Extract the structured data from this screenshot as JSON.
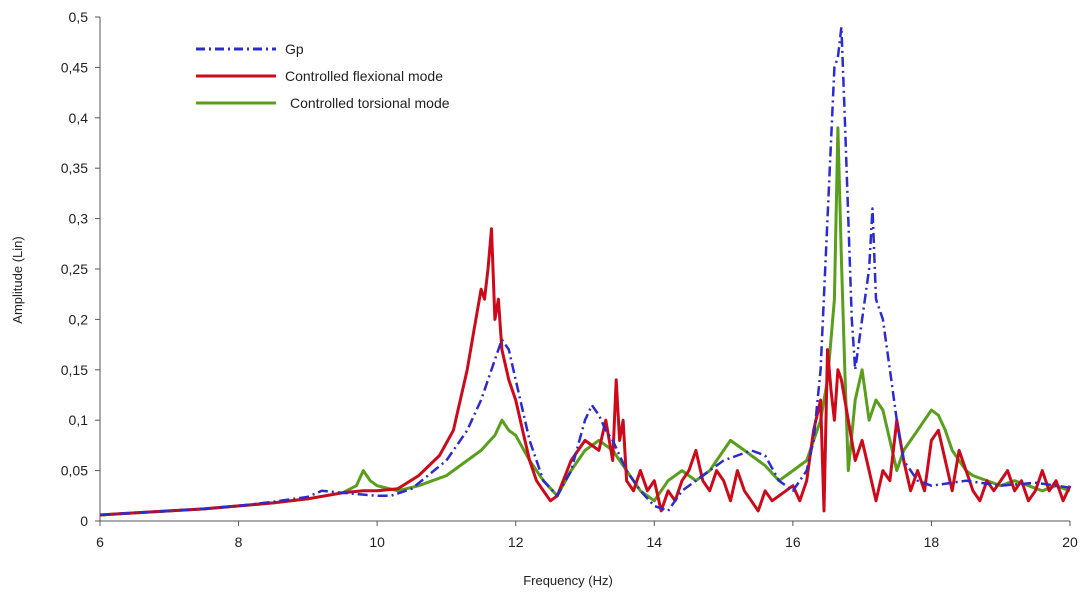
{
  "chart_data": {
    "type": "line",
    "title": "",
    "xlabel": "Frequency (Hz)",
    "ylabel": "Amplitude (Lin)",
    "xlim": [
      6,
      20
    ],
    "ylim": [
      0,
      0.5
    ],
    "x_ticks": [
      6,
      8,
      10,
      12,
      14,
      16,
      18,
      20
    ],
    "x_tick_labels": [
      "6",
      "8",
      "10",
      "12",
      "14",
      "16",
      "18",
      "20"
    ],
    "y_ticks": [
      0,
      0.05,
      0.1,
      0.15,
      0.2,
      0.25,
      0.3,
      0.35,
      0.4,
      0.45,
      0.5
    ],
    "y_tick_labels": [
      "0",
      "0,05",
      "0,1",
      "0,15",
      "0,2",
      "0,25",
      "0,3",
      "0,35",
      "0,4",
      "0,45",
      "0,5"
    ],
    "grid": false,
    "legend_position": "top-left",
    "series": [
      {
        "name": "Gp",
        "color": "#2b2bd0",
        "style": "dash-dot",
        "x": [
          6.0,
          6.5,
          7.0,
          7.5,
          8.0,
          8.5,
          9.0,
          9.2,
          9.5,
          10.0,
          10.2,
          10.5,
          11.0,
          11.3,
          11.5,
          11.7,
          11.8,
          11.9,
          12.0,
          12.2,
          12.4,
          12.6,
          12.8,
          13.0,
          13.1,
          13.2,
          13.3,
          13.4,
          13.6,
          13.8,
          14.0,
          14.2,
          14.4,
          14.6,
          14.8,
          15.0,
          15.2,
          15.4,
          15.6,
          15.8,
          16.0,
          16.2,
          16.3,
          16.4,
          16.5,
          16.6,
          16.65,
          16.7,
          16.75,
          16.8,
          16.85,
          16.9,
          17.0,
          17.1,
          17.15,
          17.2,
          17.3,
          17.4,
          17.5,
          17.6,
          17.8,
          18.0,
          18.5,
          19.0,
          19.5,
          20.0
        ],
        "y": [
          0.006,
          0.008,
          0.01,
          0.012,
          0.015,
          0.019,
          0.024,
          0.03,
          0.028,
          0.025,
          0.025,
          0.032,
          0.06,
          0.09,
          0.12,
          0.16,
          0.18,
          0.17,
          0.14,
          0.08,
          0.04,
          0.025,
          0.05,
          0.1,
          0.115,
          0.105,
          0.09,
          0.08,
          0.05,
          0.03,
          0.015,
          0.01,
          0.03,
          0.04,
          0.05,
          0.06,
          0.065,
          0.07,
          0.065,
          0.04,
          0.03,
          0.05,
          0.08,
          0.15,
          0.3,
          0.45,
          0.46,
          0.49,
          0.4,
          0.3,
          0.2,
          0.15,
          0.2,
          0.25,
          0.31,
          0.22,
          0.2,
          0.15,
          0.1,
          0.06,
          0.04,
          0.035,
          0.04,
          0.035,
          0.038,
          0.033
        ]
      },
      {
        "name": "Controlled flexional mode",
        "color": "#cc0a1a",
        "style": "solid",
        "x": [
          6.0,
          6.5,
          7.0,
          7.5,
          8.0,
          8.5,
          9.0,
          9.5,
          9.8,
          10.0,
          10.3,
          10.6,
          10.9,
          11.1,
          11.3,
          11.4,
          11.5,
          11.55,
          11.6,
          11.65,
          11.7,
          11.75,
          11.8,
          11.9,
          12.0,
          12.1,
          12.2,
          12.3,
          12.4,
          12.5,
          12.6,
          12.8,
          13.0,
          13.2,
          13.3,
          13.4,
          13.45,
          13.5,
          13.55,
          13.6,
          13.7,
          13.8,
          13.9,
          14.0,
          14.1,
          14.2,
          14.3,
          14.4,
          14.5,
          14.6,
          14.7,
          14.8,
          14.9,
          15.0,
          15.1,
          15.2,
          15.3,
          15.4,
          15.5,
          15.6,
          15.7,
          15.8,
          15.9,
          16.0,
          16.1,
          16.2,
          16.3,
          16.4,
          16.45,
          16.5,
          16.55,
          16.6,
          16.65,
          16.7,
          16.8,
          16.9,
          17.0,
          17.1,
          17.2,
          17.3,
          17.4,
          17.5,
          17.6,
          17.7,
          17.8,
          17.9,
          18.0,
          18.1,
          18.2,
          18.3,
          18.4,
          18.5,
          18.6,
          18.7,
          18.8,
          18.9,
          19.0,
          19.1,
          19.2,
          19.3,
          19.4,
          19.5,
          19.6,
          19.7,
          19.8,
          19.9,
          20.0
        ],
        "y": [
          0.006,
          0.008,
          0.01,
          0.012,
          0.015,
          0.018,
          0.022,
          0.028,
          0.03,
          0.03,
          0.032,
          0.045,
          0.065,
          0.09,
          0.15,
          0.19,
          0.23,
          0.22,
          0.25,
          0.29,
          0.2,
          0.22,
          0.17,
          0.14,
          0.12,
          0.09,
          0.06,
          0.04,
          0.03,
          0.02,
          0.025,
          0.06,
          0.08,
          0.07,
          0.1,
          0.06,
          0.14,
          0.08,
          0.1,
          0.04,
          0.03,
          0.05,
          0.03,
          0.04,
          0.01,
          0.03,
          0.02,
          0.04,
          0.05,
          0.07,
          0.04,
          0.03,
          0.05,
          0.04,
          0.02,
          0.05,
          0.03,
          0.02,
          0.01,
          0.03,
          0.02,
          0.025,
          0.03,
          0.035,
          0.02,
          0.04,
          0.09,
          0.12,
          0.01,
          0.17,
          0.13,
          0.1,
          0.15,
          0.14,
          0.1,
          0.06,
          0.08,
          0.05,
          0.02,
          0.05,
          0.04,
          0.1,
          0.06,
          0.03,
          0.05,
          0.03,
          0.08,
          0.09,
          0.06,
          0.03,
          0.07,
          0.05,
          0.03,
          0.02,
          0.04,
          0.03,
          0.04,
          0.05,
          0.03,
          0.04,
          0.02,
          0.03,
          0.05,
          0.03,
          0.04,
          0.02,
          0.035
        ]
      },
      {
        "name": "Controlled torsional mode",
        "color": "#5a9e1e",
        "style": "solid",
        "x": [
          6.0,
          6.5,
          7.0,
          7.5,
          8.0,
          8.5,
          9.0,
          9.5,
          9.7,
          9.8,
          9.9,
          10.0,
          10.3,
          10.6,
          11.0,
          11.3,
          11.5,
          11.7,
          11.8,
          11.9,
          12.0,
          12.2,
          12.4,
          12.6,
          12.8,
          13.0,
          13.2,
          13.4,
          13.6,
          13.8,
          14.0,
          14.2,
          14.4,
          14.6,
          14.8,
          15.0,
          15.1,
          15.2,
          15.3,
          15.4,
          15.5,
          15.6,
          15.8,
          16.0,
          16.2,
          16.4,
          16.5,
          16.55,
          16.6,
          16.65,
          16.7,
          16.75,
          16.8,
          16.9,
          17.0,
          17.1,
          17.2,
          17.3,
          17.4,
          17.5,
          17.6,
          17.7,
          17.8,
          17.9,
          18.0,
          18.1,
          18.2,
          18.3,
          18.4,
          18.5,
          18.6,
          18.8,
          19.0,
          19.2,
          19.4,
          19.6,
          19.8,
          20.0
        ],
        "y": [
          0.006,
          0.008,
          0.01,
          0.012,
          0.015,
          0.018,
          0.022,
          0.028,
          0.035,
          0.05,
          0.04,
          0.035,
          0.03,
          0.035,
          0.045,
          0.06,
          0.07,
          0.085,
          0.1,
          0.09,
          0.085,
          0.06,
          0.04,
          0.025,
          0.05,
          0.07,
          0.08,
          0.07,
          0.05,
          0.03,
          0.02,
          0.04,
          0.05,
          0.04,
          0.05,
          0.07,
          0.08,
          0.075,
          0.07,
          0.065,
          0.06,
          0.055,
          0.04,
          0.05,
          0.06,
          0.1,
          0.14,
          0.18,
          0.22,
          0.39,
          0.26,
          0.15,
          0.05,
          0.12,
          0.15,
          0.1,
          0.12,
          0.11,
          0.08,
          0.05,
          0.07,
          0.08,
          0.09,
          0.1,
          0.11,
          0.105,
          0.09,
          0.07,
          0.06,
          0.05,
          0.045,
          0.04,
          0.035,
          0.04,
          0.035,
          0.03,
          0.035,
          0.03
        ]
      }
    ]
  }
}
